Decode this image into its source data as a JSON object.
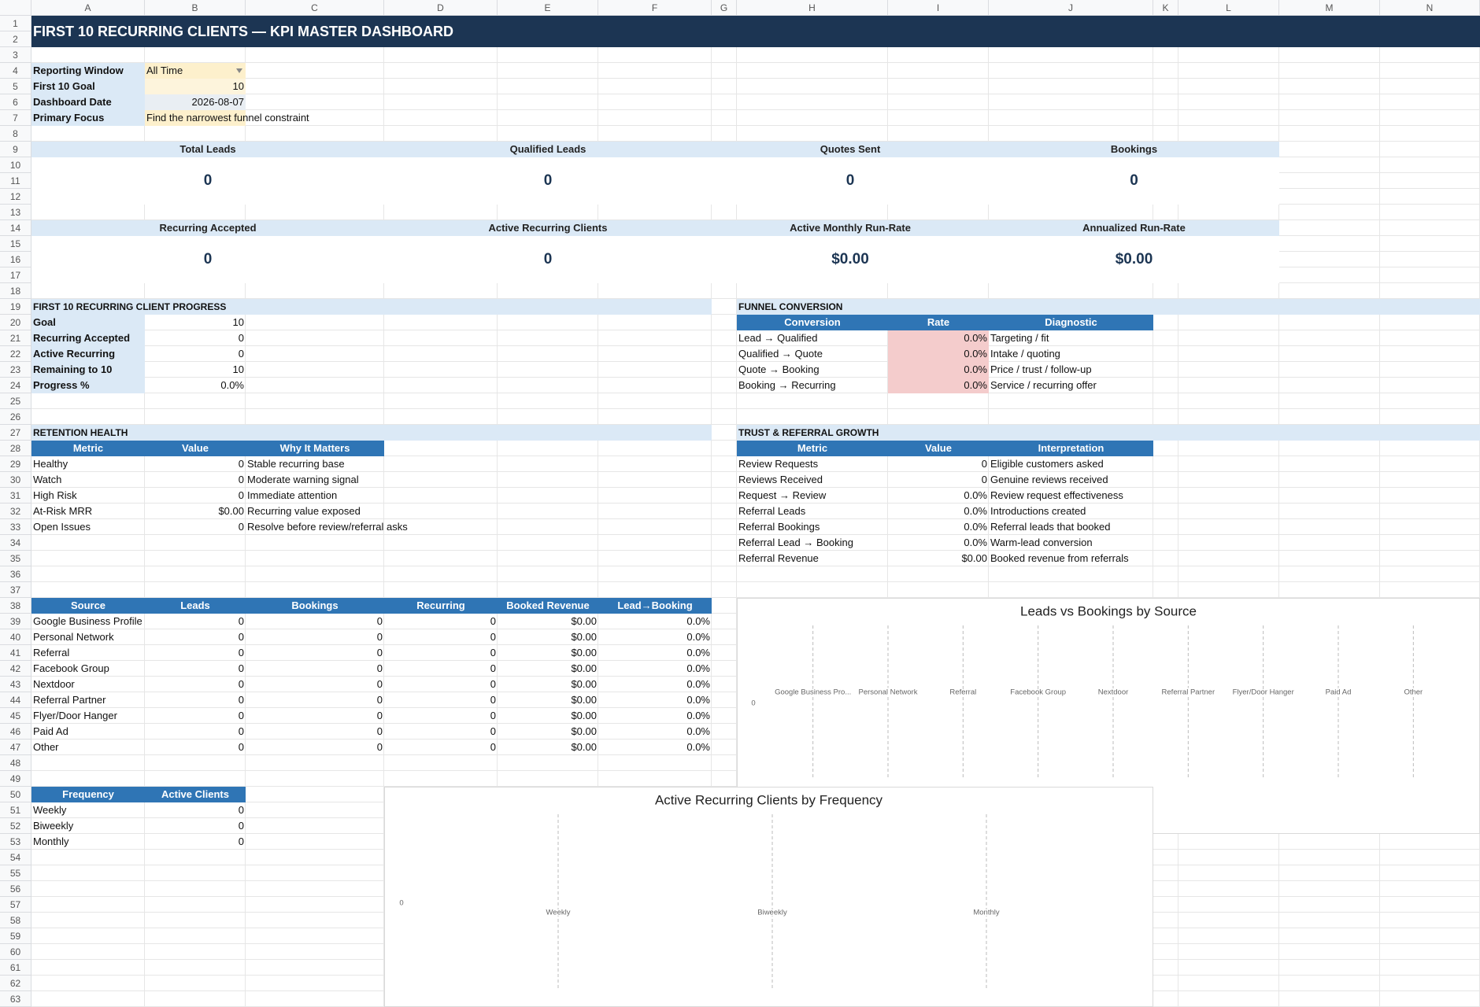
{
  "columns": [
    "A",
    "B",
    "C",
    "D",
    "E",
    "F",
    "G",
    "H",
    "I",
    "J",
    "K",
    "L",
    "M",
    "N"
  ],
  "rows": [
    1,
    2,
    3,
    4,
    5,
    6,
    7,
    8,
    9,
    10,
    11,
    12,
    13,
    14,
    15,
    16,
    17,
    18,
    19,
    20,
    21,
    22,
    23,
    24,
    25,
    26,
    27,
    28,
    29,
    30,
    31,
    32,
    33,
    34,
    35,
    36,
    37,
    38,
    39,
    40,
    41,
    42,
    43,
    44,
    45,
    46,
    47,
    48,
    49,
    50,
    51,
    52,
    53,
    54,
    55,
    56,
    57,
    58,
    59,
    60,
    61,
    62,
    63
  ],
  "title": "FIRST 10 RECURRING CLIENTS — KPI MASTER DASHBOARD",
  "settings": [
    {
      "label": "Reporting Window",
      "value": "All Time"
    },
    {
      "label": "First 10 Goal",
      "value": 10
    },
    {
      "label": "Dashboard Date",
      "value": "2026-08-07"
    },
    {
      "label": "Primary Focus",
      "value": "Find the narrowest funnel constraint"
    }
  ],
  "kpis": [
    {
      "label": "Total Leads",
      "value": 0
    },
    {
      "label": "Qualified Leads",
      "value": 0
    },
    {
      "label": "Quotes Sent",
      "value": 0
    },
    {
      "label": "Bookings",
      "value": 0
    },
    {
      "label": "Recurring Accepted",
      "value": 0
    },
    {
      "label": "Active Recurring Clients",
      "value": 0
    },
    {
      "label": "Active Monthly Run-Rate",
      "value": "$0.00"
    },
    {
      "label": "Annualized Run-Rate",
      "value": "$0.00"
    }
  ],
  "progress": {
    "title": "FIRST 10 RECURRING CLIENT PROGRESS",
    "rows": [
      [
        "Goal",
        10
      ],
      [
        "Recurring Accepted",
        0
      ],
      [
        "Active Recurring",
        0
      ],
      [
        "Remaining to 10",
        10
      ],
      [
        "Progress %",
        "0.0%"
      ]
    ]
  },
  "funnel": {
    "title": "FUNNEL CONVERSION",
    "header": [
      "Conversion",
      "Rate",
      "Diagnostic"
    ],
    "rows": [
      [
        "Lead → Qualified",
        "0.0%",
        "Targeting / fit"
      ],
      [
        "Qualified → Quote",
        "0.0%",
        "Intake / quoting"
      ],
      [
        "Quote → Booking",
        "0.0%",
        "Price / trust / follow-up"
      ],
      [
        "Booking → Recurring",
        "0.0%",
        "Service / recurring offer"
      ]
    ]
  },
  "retention": {
    "title": "RETENTION HEALTH",
    "header": [
      "Metric",
      "Value",
      "Why It Matters"
    ],
    "rows": [
      [
        "Healthy",
        0,
        "Stable recurring base"
      ],
      [
        "Watch",
        0,
        "Moderate warning signal"
      ],
      [
        "High Risk",
        0,
        "Immediate attention"
      ],
      [
        "At-Risk MRR",
        "$0.00",
        "Recurring value exposed"
      ],
      [
        "Open Issues",
        0,
        "Resolve before review/referral asks"
      ]
    ]
  },
  "trust": {
    "title": "TRUST & REFERRAL GROWTH",
    "header": [
      "Metric",
      "Value",
      "Interpretation"
    ],
    "rows": [
      [
        "Review Requests",
        0,
        "Eligible customers asked"
      ],
      [
        "Reviews Received",
        0,
        "Genuine reviews received"
      ],
      [
        "Request → Review",
        "0.0%",
        "Review request effectiveness"
      ],
      [
        "Referral Leads",
        "0.0%",
        "Introductions created"
      ],
      [
        "Referral Bookings",
        "0.0%",
        "Referral leads that booked"
      ],
      [
        "Referral Lead → Booking",
        "0.0%",
        "Warm-lead conversion"
      ],
      [
        "Referral Revenue",
        "$0.00",
        "Booked revenue from referrals"
      ]
    ]
  },
  "sources": {
    "header": [
      "Source",
      "Leads",
      "Bookings",
      "Recurring",
      "Booked Revenue",
      "Lead→Booking"
    ],
    "rows": [
      [
        "Google Business Profile",
        0,
        0,
        0,
        "$0.00",
        "0.0%"
      ],
      [
        "Personal Network",
        0,
        0,
        0,
        "$0.00",
        "0.0%"
      ],
      [
        "Referral",
        0,
        0,
        0,
        "$0.00",
        "0.0%"
      ],
      [
        "Facebook Group",
        0,
        0,
        0,
        "$0.00",
        "0.0%"
      ],
      [
        "Nextdoor",
        0,
        0,
        0,
        "$0.00",
        "0.0%"
      ],
      [
        "Referral Partner",
        0,
        0,
        0,
        "$0.00",
        "0.0%"
      ],
      [
        "Flyer/Door Hanger",
        0,
        0,
        0,
        "$0.00",
        "0.0%"
      ],
      [
        "Paid Ad",
        0,
        0,
        0,
        "$0.00",
        "0.0%"
      ],
      [
        "Other",
        0,
        0,
        0,
        "$0.00",
        "0.0%"
      ]
    ]
  },
  "frequency": {
    "header": [
      "Frequency",
      "Active Clients"
    ],
    "rows": [
      [
        "Weekly",
        0
      ],
      [
        "Biweekly",
        0
      ],
      [
        "Monthly",
        0
      ]
    ]
  },
  "charts": [
    {
      "type": "bar",
      "title": "Leads vs Bookings by Source",
      "categories": [
        "Google Business Pro...",
        "Personal Network",
        "Referral",
        "Facebook Group",
        "Nextdoor",
        "Referral Partner",
        "Flyer/Door Hanger",
        "Paid Ad",
        "Other"
      ],
      "yticks": [
        0
      ]
    },
    {
      "type": "bar",
      "title": "Active Recurring Clients by Frequency",
      "categories": [
        "Weekly",
        "Biweekly",
        "Monthly"
      ],
      "yticks": [
        0
      ]
    }
  ]
}
